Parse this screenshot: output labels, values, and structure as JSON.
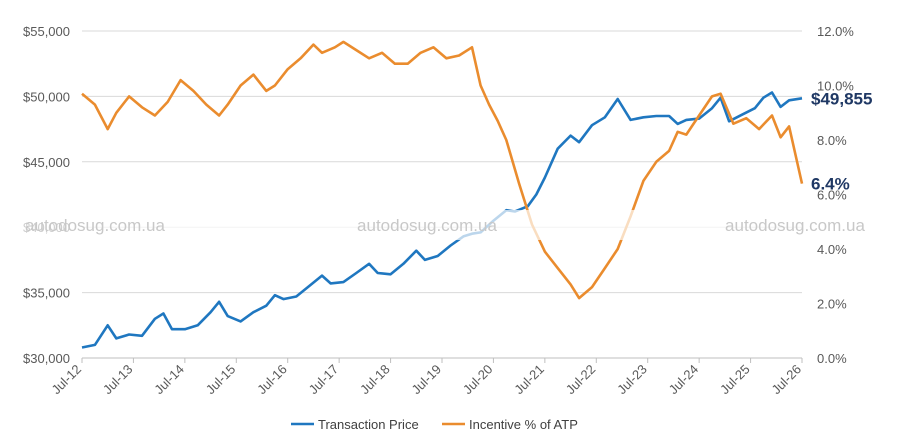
{
  "chart_data": {
    "type": "line",
    "title": "",
    "x_ticks": [
      "Jul-12",
      "Jul-13",
      "Jul-14",
      "Jul-15",
      "Jul-16",
      "Jul-17",
      "Jul-18",
      "Jul-19",
      "Jul-20",
      "Jul-21",
      "Jul-22",
      "Jul-23",
      "Jul-24",
      "Jul-25",
      "Jul-26"
    ],
    "x_range": [
      "2012-07",
      "2026-07"
    ],
    "y_left": {
      "ticks": [
        "$30,000",
        "$35,000",
        "$40,000",
        "$45,000",
        "$50,000",
        "$55,000"
      ],
      "min": 30000,
      "max": 55000
    },
    "y_right": {
      "ticks": [
        "0.0%",
        "2.0%",
        "4.0%",
        "6.0%",
        "8.0%",
        "10.0%",
        "12.0%"
      ],
      "min": 0,
      "max": 12
    },
    "grid": "horizontal",
    "legend_position": "bottom",
    "series": [
      {
        "name": "Transaction Price",
        "color": "#1f77c0",
        "axis": "left",
        "points": [
          [
            "2012-07",
            30800
          ],
          [
            "2012-10",
            31000
          ],
          [
            "2013-01",
            32500
          ],
          [
            "2013-03",
            31500
          ],
          [
            "2013-06",
            31800
          ],
          [
            "2013-09",
            31700
          ],
          [
            "2013-12",
            33000
          ],
          [
            "2014-02",
            33400
          ],
          [
            "2014-04",
            32200
          ],
          [
            "2014-07",
            32200
          ],
          [
            "2014-10",
            32500
          ],
          [
            "2015-01",
            33500
          ],
          [
            "2015-03",
            34300
          ],
          [
            "2015-05",
            33200
          ],
          [
            "2015-08",
            32800
          ],
          [
            "2015-11",
            33500
          ],
          [
            "2016-02",
            34000
          ],
          [
            "2016-04",
            34800
          ],
          [
            "2016-06",
            34500
          ],
          [
            "2016-09",
            34700
          ],
          [
            "2016-12",
            35500
          ],
          [
            "2017-03",
            36300
          ],
          [
            "2017-05",
            35700
          ],
          [
            "2017-08",
            35800
          ],
          [
            "2017-11",
            36500
          ],
          [
            "2018-02",
            37200
          ],
          [
            "2018-04",
            36500
          ],
          [
            "2018-07",
            36400
          ],
          [
            "2018-10",
            37200
          ],
          [
            "2019-01",
            38200
          ],
          [
            "2019-03",
            37500
          ],
          [
            "2019-06",
            37800
          ],
          [
            "2019-09",
            38600
          ],
          [
            "2019-12",
            39300
          ],
          [
            "2020-02",
            39500
          ],
          [
            "2020-04",
            39600
          ],
          [
            "2020-07",
            40500
          ],
          [
            "2020-10",
            41300
          ],
          [
            "2020-12",
            41200
          ],
          [
            "2021-03",
            41600
          ],
          [
            "2021-05",
            42500
          ],
          [
            "2021-07",
            43800
          ],
          [
            "2021-10",
            46000
          ],
          [
            "2022-01",
            47000
          ],
          [
            "2022-03",
            46500
          ],
          [
            "2022-06",
            47800
          ],
          [
            "2022-09",
            48400
          ],
          [
            "2022-12",
            49800
          ],
          [
            "2023-03",
            48200
          ],
          [
            "2023-06",
            48400
          ],
          [
            "2023-09",
            48500
          ],
          [
            "2023-12",
            48500
          ],
          [
            "2024-02",
            47900
          ],
          [
            "2024-04",
            48200
          ],
          [
            "2024-07",
            48300
          ],
          [
            "2024-10",
            49100
          ],
          [
            "2024-12",
            49900
          ],
          [
            "2025-02",
            48100
          ],
          [
            "2025-05",
            48600
          ],
          [
            "2025-08",
            49100
          ],
          [
            "2025-10",
            49900
          ],
          [
            "2025-12",
            50300
          ],
          [
            "2026-02",
            49200
          ],
          [
            "2026-04",
            49700
          ],
          [
            "2026-07",
            49855
          ]
        ]
      },
      {
        "name": "Incentive % of ATP",
        "color": "#ea8c2e",
        "axis": "right",
        "points": [
          [
            "2012-07",
            9.7
          ],
          [
            "2012-10",
            9.3
          ],
          [
            "2013-01",
            8.4
          ],
          [
            "2013-03",
            9.0
          ],
          [
            "2013-06",
            9.6
          ],
          [
            "2013-09",
            9.2
          ],
          [
            "2013-12",
            8.9
          ],
          [
            "2014-03",
            9.4
          ],
          [
            "2014-06",
            10.2
          ],
          [
            "2014-09",
            9.8
          ],
          [
            "2014-12",
            9.3
          ],
          [
            "2015-03",
            8.9
          ],
          [
            "2015-05",
            9.3
          ],
          [
            "2015-08",
            10.0
          ],
          [
            "2015-11",
            10.4
          ],
          [
            "2016-02",
            9.8
          ],
          [
            "2016-04",
            10.0
          ],
          [
            "2016-07",
            10.6
          ],
          [
            "2016-10",
            11.0
          ],
          [
            "2017-01",
            11.5
          ],
          [
            "2017-03",
            11.2
          ],
          [
            "2017-06",
            11.4
          ],
          [
            "2017-08",
            11.6
          ],
          [
            "2017-11",
            11.3
          ],
          [
            "2018-02",
            11.0
          ],
          [
            "2018-05",
            11.2
          ],
          [
            "2018-08",
            10.8
          ],
          [
            "2018-11",
            10.8
          ],
          [
            "2019-02",
            11.2
          ],
          [
            "2019-05",
            11.4
          ],
          [
            "2019-08",
            11.0
          ],
          [
            "2019-11",
            11.1
          ],
          [
            "2020-02",
            11.4
          ],
          [
            "2020-04",
            10.0
          ],
          [
            "2020-06",
            9.3
          ],
          [
            "2020-08",
            8.7
          ],
          [
            "2020-10",
            8.0
          ],
          [
            "2021-01",
            6.4
          ],
          [
            "2021-04",
            4.9
          ],
          [
            "2021-07",
            3.9
          ],
          [
            "2021-10",
            3.3
          ],
          [
            "2022-01",
            2.7
          ],
          [
            "2022-03",
            2.2
          ],
          [
            "2022-06",
            2.6
          ],
          [
            "2022-09",
            3.3
          ],
          [
            "2022-12",
            4.0
          ],
          [
            "2023-03",
            5.2
          ],
          [
            "2023-06",
            6.5
          ],
          [
            "2023-09",
            7.2
          ],
          [
            "2023-12",
            7.6
          ],
          [
            "2024-02",
            8.3
          ],
          [
            "2024-04",
            8.2
          ],
          [
            "2024-07",
            8.9
          ],
          [
            "2024-10",
            9.6
          ],
          [
            "2024-12",
            9.7
          ],
          [
            "2025-03",
            8.6
          ],
          [
            "2025-06",
            8.8
          ],
          [
            "2025-09",
            8.4
          ],
          [
            "2025-12",
            8.9
          ],
          [
            "2026-02",
            8.1
          ],
          [
            "2026-04",
            8.5
          ],
          [
            "2026-07",
            6.4
          ]
        ]
      }
    ],
    "callouts": [
      {
        "label": "$49,855",
        "series": "Transaction Price",
        "color": "#1f3864"
      },
      {
        "label": "6.4%",
        "series": "Incentive % of ATP",
        "color": "#1f3864"
      }
    ]
  },
  "watermark": {
    "text": "autodosug.com.ua",
    "color": "#c8c8c8"
  }
}
